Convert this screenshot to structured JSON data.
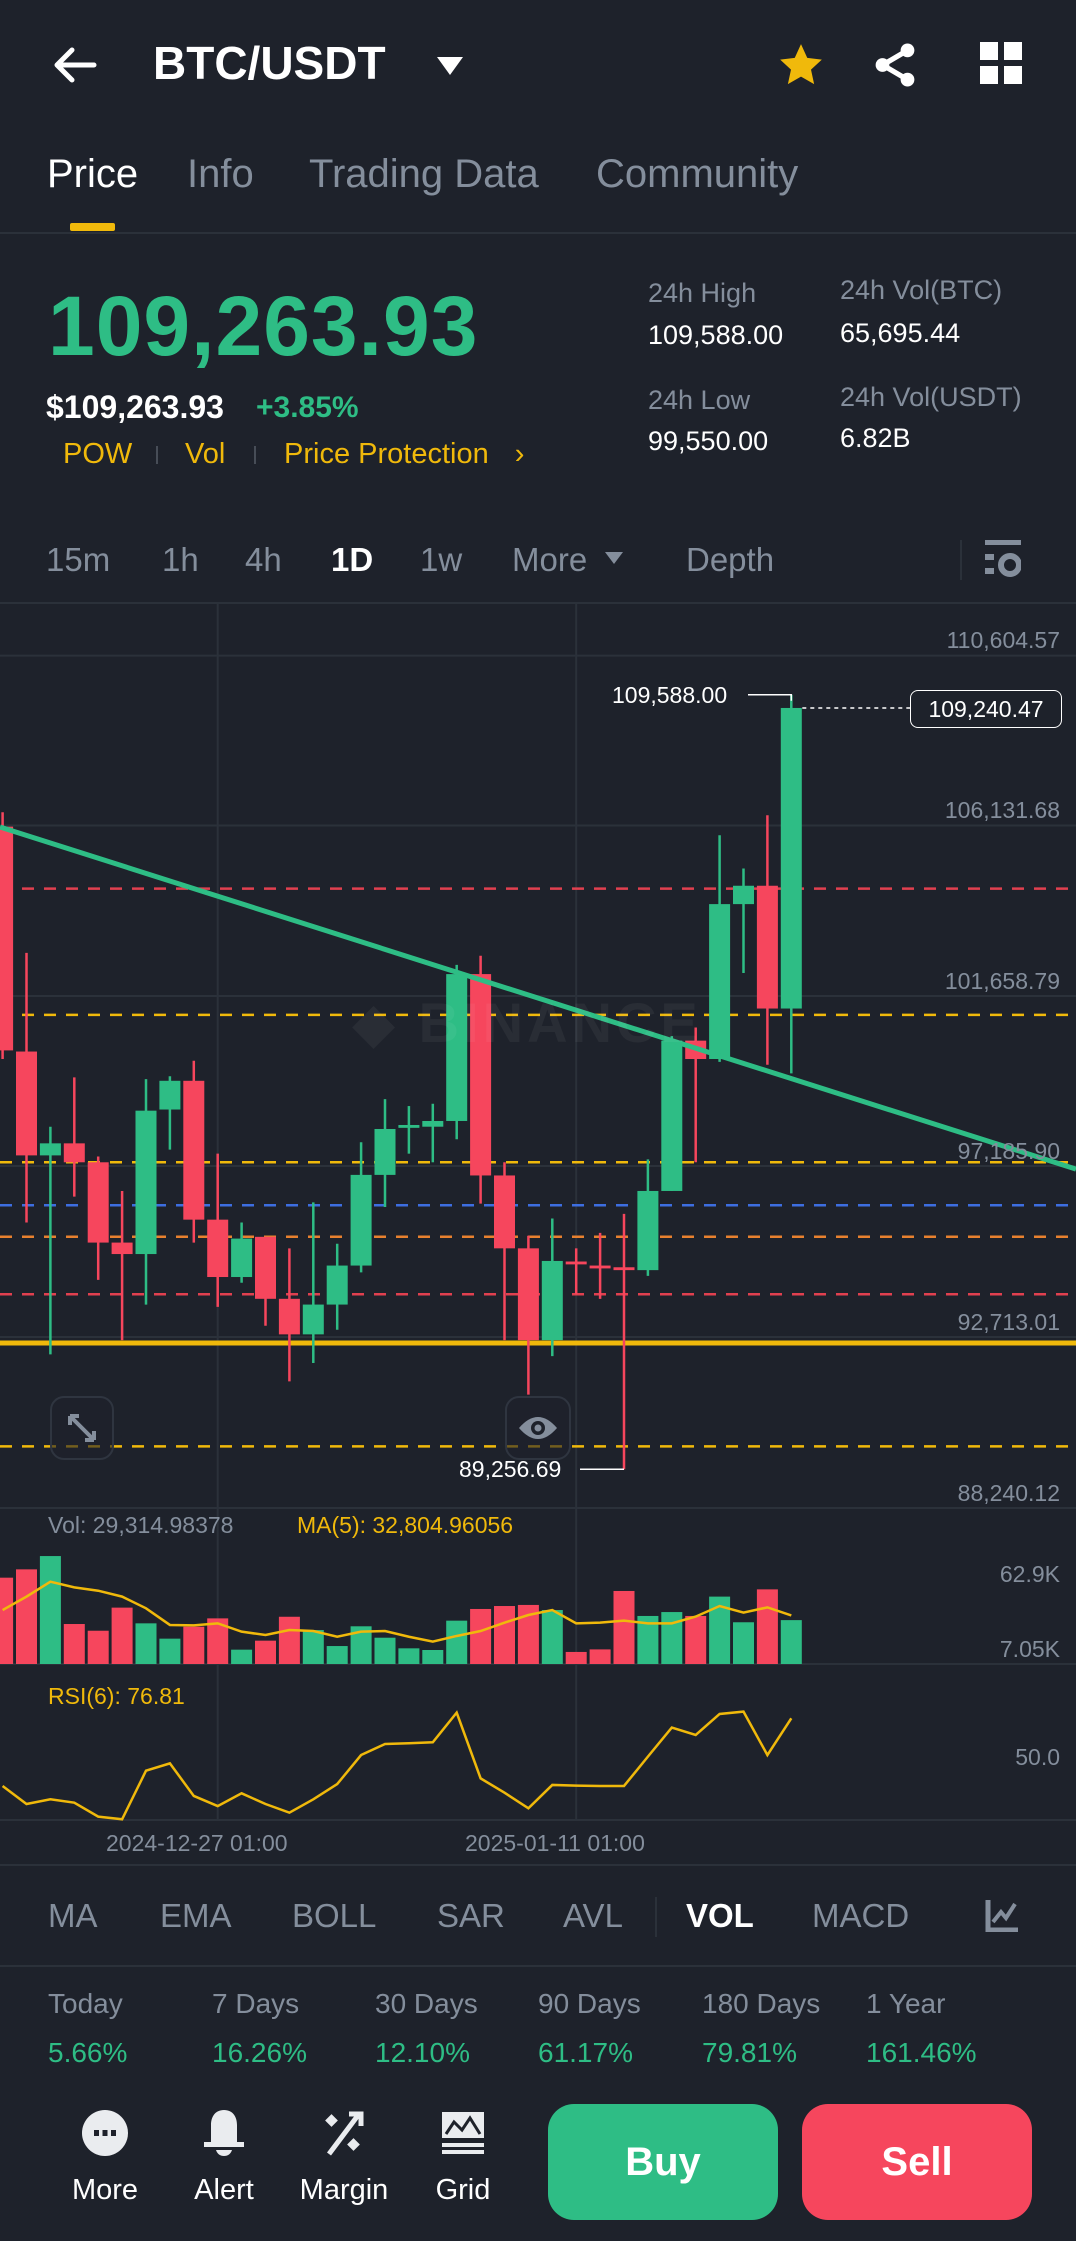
{
  "header": {
    "title": "BTC/USDT",
    "favorite": true
  },
  "tabs": [
    {
      "label": "Price",
      "active": true
    },
    {
      "label": "Info"
    },
    {
      "label": "Trading Data"
    },
    {
      "label": "Community"
    }
  ],
  "ticker": {
    "last_price": "109,263.93",
    "usd_price": "$109,263.93",
    "change_pct": "+3.85%",
    "tags": [
      "POW",
      "Vol",
      "Price Protection"
    ],
    "stats": {
      "high_label": "24h High",
      "high": "109,588.00",
      "low_label": "24h Low",
      "low": "99,550.00",
      "vol_btc_label": "24h Vol(BTC)",
      "vol_btc": "65,695.44",
      "vol_usdt_label": "24h Vol(USDT)",
      "vol_usdt": "6.82B"
    }
  },
  "timeframes": [
    {
      "label": "15m"
    },
    {
      "label": "1h"
    },
    {
      "label": "4h"
    },
    {
      "label": "1D",
      "active": true
    },
    {
      "label": "1w"
    },
    {
      "label": "More"
    },
    {
      "label": "Depth"
    }
  ],
  "colors": {
    "up": "#2ebd85",
    "down": "#f6465d",
    "accent": "#f0b90b",
    "background": "#1e222b"
  },
  "chart_data": {
    "type": "candlestick",
    "interval": "1D",
    "price_axis": {
      "ticks": [
        "110,604.57",
        "106,131.68",
        "101,658.79",
        "97,185.90",
        "92,713.01",
        "88,240.12"
      ]
    },
    "last_price_label": "109,240.47",
    "last_price": 109240.47,
    "high_annotation": "109,588.00",
    "low_annotation": "89,256.69",
    "watermark": "BINANCE",
    "date_labels": [
      {
        "label": "2024-12-27 01:00",
        "candle_index": 9
      },
      {
        "label": "2025-01-11 01:00",
        "candle_index": 24
      }
    ],
    "candles": [
      {
        "o": 106124,
        "h": 106501,
        "l": 100025,
        "c": 100251
      },
      {
        "o": 100221,
        "h": 102811,
        "l": 95733,
        "c": 97495
      },
      {
        "o": 97495,
        "h": 98248,
        "l": 92270,
        "c": 97811
      },
      {
        "o": 97811,
        "h": 99543,
        "l": 96411,
        "c": 97314
      },
      {
        "o": 97314,
        "h": 97465,
        "l": 94227,
        "c": 95206
      },
      {
        "o": 95206,
        "h": 96561,
        "l": 92646,
        "c": 94905
      },
      {
        "o": 94905,
        "h": 99498,
        "l": 93579,
        "c": 98669
      },
      {
        "o": 98699,
        "h": 99573,
        "l": 97646,
        "c": 99453
      },
      {
        "o": 99453,
        "h": 99980,
        "l": 95206,
        "c": 95808
      },
      {
        "o": 95808,
        "h": 97540,
        "l": 93519,
        "c": 94302
      },
      {
        "o": 94302,
        "h": 95733,
        "l": 94152,
        "c": 95311
      },
      {
        "o": 95357,
        "h": 95357,
        "l": 93022,
        "c": 93730
      },
      {
        "o": 93730,
        "h": 95055,
        "l": 91562,
        "c": 92797
      },
      {
        "o": 92797,
        "h": 96260,
        "l": 92044,
        "c": 93579
      },
      {
        "o": 93579,
        "h": 95176,
        "l": 92917,
        "c": 94603
      },
      {
        "o": 94603,
        "h": 97841,
        "l": 94423,
        "c": 96983
      },
      {
        "o": 96983,
        "h": 98971,
        "l": 96140,
        "c": 98188
      },
      {
        "o": 98218,
        "h": 98790,
        "l": 97540,
        "c": 98293
      },
      {
        "o": 98248,
        "h": 98850,
        "l": 97314,
        "c": 98398
      },
      {
        "o": 98398,
        "h": 102495,
        "l": 97917,
        "c": 102254
      },
      {
        "o": 102254,
        "h": 102736,
        "l": 96230,
        "c": 96968
      },
      {
        "o": 96968,
        "h": 97314,
        "l": 92646,
        "c": 95055
      },
      {
        "o": 95055,
        "h": 95387,
        "l": 91215,
        "c": 92646
      },
      {
        "o": 92646,
        "h": 95838,
        "l": 92225,
        "c": 94724
      },
      {
        "o": 94709,
        "h": 95055,
        "l": 93851,
        "c": 94634
      },
      {
        "o": 94603,
        "h": 95462,
        "l": 93730,
        "c": 94528
      },
      {
        "o": 94558,
        "h": 95959,
        "l": 89257,
        "c": 94483
      },
      {
        "o": 94483,
        "h": 97390,
        "l": 94332,
        "c": 96561
      },
      {
        "o": 96561,
        "h": 100627,
        "l": 96561,
        "c": 100507
      },
      {
        "o": 100507,
        "h": 100853,
        "l": 97314,
        "c": 100025
      },
      {
        "o": 100025,
        "h": 105898,
        "l": 99950,
        "c": 104091
      },
      {
        "o": 104091,
        "h": 105025,
        "l": 102284,
        "c": 104573
      },
      {
        "o": 104573,
        "h": 106425,
        "l": 99875,
        "c": 101350
      },
      {
        "o": 101350,
        "h": 109588,
        "l": 99648,
        "c": 109240
      }
    ],
    "levels": [
      {
        "price": 104498,
        "color": "#e0404f",
        "style": "dashed"
      },
      {
        "price": 101185,
        "color": "#f0b90b",
        "style": "dashed"
      },
      {
        "price": 97316,
        "color": "#f0b90b",
        "style": "dashed"
      },
      {
        "price": 96185,
        "color": "#3d6ee0",
        "style": "dashed"
      },
      {
        "price": 95358,
        "color": "#e8812f",
        "style": "dashed"
      },
      {
        "price": 93851,
        "color": "#e0404f",
        "style": "dashed"
      },
      {
        "price": 92570,
        "color": "#f0b90b",
        "style": "solid"
      },
      {
        "price": 89858,
        "color": "#f0b90b",
        "style": "dashed"
      }
    ],
    "trendline": {
      "color": "#2ebd85",
      "points": [
        {
          "candle_index": 0,
          "price": 106094
        },
        {
          "candle_index": 34.2,
          "price": 99272
        }
      ]
    },
    "volume": {
      "label": "Vol: 29,314.98378",
      "ma_label": "MA(5): 32,804.96056",
      "axis_ticks": [
        "62.9K",
        "7.05K"
      ],
      "values_k": [
        60.9,
        67.1,
        77.0,
        26.4,
        21.4,
        38.6,
        26.9,
        15.5,
        24.4,
        30.6,
        7.3,
        14.0,
        31.8,
        21.9,
        10.0,
        24.7,
        16.2,
        8.3,
        7.05,
        28.9,
        37.6,
        39.8,
        40.6,
        36.8,
        5.6,
        7.5,
        51.0,
        32.4,
        35.3,
        32.4,
        46.8,
        27.7,
        52.2,
        29.3
      ],
      "ma5_k": [
        36.8,
        46.8,
        57.9,
        53.7,
        51.2,
        46.8,
        38.1,
        25.7,
        25.4,
        26.9,
        20.7,
        18.2,
        21.9,
        21.2,
        16.9,
        20.7,
        21.2,
        16.9,
        13.3,
        17.5,
        21.2,
        27.4,
        33.1,
        36.8,
        26.9,
        27.4,
        28.9,
        26.9,
        26.9,
        31.9,
        39.8,
        34.9,
        38.8,
        32.8
      ]
    },
    "rsi": {
      "label": "RSI(6): 76.81",
      "axis_ticks": [
        "50.0"
      ],
      "values": [
        30.7,
        18.4,
        21.6,
        19.3,
        9.8,
        8.0,
        41.1,
        46.1,
        23.9,
        17.0,
        25.7,
        18.4,
        12.5,
        21.6,
        32.0,
        51.8,
        59.3,
        59.8,
        60.5,
        80.7,
        35.9,
        26.1,
        15.5,
        31.4,
        30.9,
        30.7,
        30.7,
        50.7,
        70.5,
        65.5,
        79.8,
        81.4,
        51.8,
        76.81
      ]
    }
  },
  "indicators": [
    {
      "label": "MA"
    },
    {
      "label": "EMA"
    },
    {
      "label": "BOLL"
    },
    {
      "label": "SAR"
    },
    {
      "label": "AVL"
    },
    {
      "label": "VOL",
      "active": true
    },
    {
      "label": "MACD"
    }
  ],
  "performance": [
    {
      "label": "Today",
      "value": "5.66%"
    },
    {
      "label": "7 Days",
      "value": "16.26%"
    },
    {
      "label": "30 Days",
      "value": "12.10%"
    },
    {
      "label": "90 Days",
      "value": "61.17%"
    },
    {
      "label": "180 Days",
      "value": "79.81%"
    },
    {
      "label": "1 Year",
      "value": "161.46%"
    }
  ],
  "bottom_nav": [
    {
      "label": "More"
    },
    {
      "label": "Alert"
    },
    {
      "label": "Margin"
    },
    {
      "label": "Grid"
    }
  ],
  "actions": {
    "buy": "Buy",
    "sell": "Sell"
  }
}
